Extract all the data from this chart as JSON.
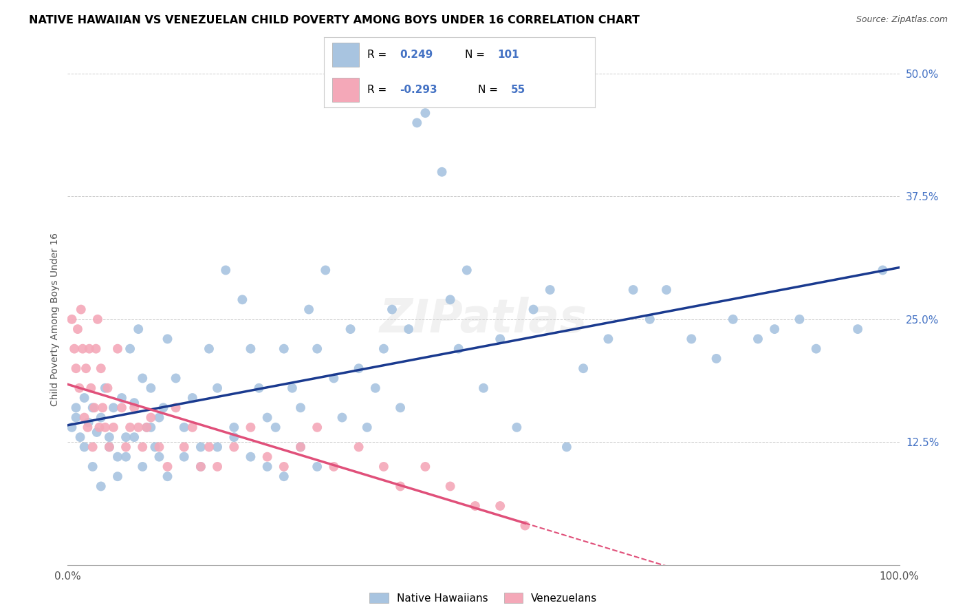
{
  "title": "NATIVE HAWAIIAN VS VENEZUELAN CHILD POVERTY AMONG BOYS UNDER 16 CORRELATION CHART",
  "source": "Source: ZipAtlas.com",
  "ylabel": "Child Poverty Among Boys Under 16",
  "r_hawaiian": 0.249,
  "n_hawaiian": 101,
  "r_venezuelan": -0.293,
  "n_venezuelan": 55,
  "hawaiian_color": "#a8c4e0",
  "venezuelan_color": "#f4a8b8",
  "hawaiian_line_color": "#1a3a8f",
  "venezuelan_line_color": "#e0507a",
  "watermark": "ZIPatlas",
  "legend_label_1": "Native Hawaiians",
  "legend_label_2": "Venezuelans",
  "hawaiian_x": [
    0.5,
    1.0,
    1.5,
    2.0,
    2.5,
    3.0,
    3.5,
    4.0,
    4.5,
    5.0,
    5.5,
    6.0,
    6.5,
    7.0,
    7.5,
    8.0,
    8.5,
    9.0,
    9.5,
    10.0,
    10.5,
    11.0,
    11.5,
    12.0,
    13.0,
    14.0,
    15.0,
    16.0,
    17.0,
    18.0,
    19.0,
    20.0,
    21.0,
    22.0,
    23.0,
    24.0,
    25.0,
    26.0,
    27.0,
    28.0,
    29.0,
    30.0,
    31.0,
    32.0,
    33.0,
    34.0,
    35.0,
    36.0,
    37.0,
    38.0,
    39.0,
    40.0,
    41.0,
    42.0,
    43.0,
    44.0,
    45.0,
    46.0,
    47.0,
    48.0,
    50.0,
    52.0,
    54.0,
    56.0,
    58.0,
    60.0,
    62.0,
    65.0,
    68.0,
    70.0,
    72.0,
    75.0,
    78.0,
    80.0,
    83.0,
    85.0,
    88.0,
    90.0,
    95.0,
    98.0,
    1.0,
    2.0,
    3.0,
    4.0,
    5.0,
    6.0,
    7.0,
    8.0,
    9.0,
    10.0,
    11.0,
    12.0,
    14.0,
    16.0,
    18.0,
    20.0,
    22.0,
    24.0,
    26.0,
    28.0,
    30.0
  ],
  "hawaiian_y": [
    14.0,
    16.0,
    13.0,
    17.0,
    14.5,
    16.0,
    13.5,
    15.0,
    18.0,
    13.0,
    16.0,
    11.0,
    17.0,
    13.0,
    22.0,
    16.5,
    24.0,
    19.0,
    14.0,
    18.0,
    12.0,
    15.0,
    16.0,
    23.0,
    19.0,
    14.0,
    17.0,
    12.0,
    22.0,
    18.0,
    30.0,
    14.0,
    27.0,
    22.0,
    18.0,
    15.0,
    14.0,
    22.0,
    18.0,
    16.0,
    26.0,
    22.0,
    30.0,
    19.0,
    15.0,
    24.0,
    20.0,
    14.0,
    18.0,
    22.0,
    26.0,
    16.0,
    24.0,
    45.0,
    46.0,
    47.0,
    40.0,
    27.0,
    22.0,
    30.0,
    18.0,
    23.0,
    14.0,
    26.0,
    28.0,
    12.0,
    20.0,
    23.0,
    28.0,
    25.0,
    28.0,
    23.0,
    21.0,
    25.0,
    23.0,
    24.0,
    25.0,
    22.0,
    24.0,
    30.0,
    15.0,
    12.0,
    10.0,
    8.0,
    12.0,
    9.0,
    11.0,
    13.0,
    10.0,
    14.0,
    11.0,
    9.0,
    11.0,
    10.0,
    12.0,
    13.0,
    11.0,
    10.0,
    9.0,
    12.0,
    10.0
  ],
  "venezuelan_x": [
    0.5,
    0.8,
    1.0,
    1.2,
    1.4,
    1.6,
    1.8,
    2.0,
    2.2,
    2.4,
    2.6,
    2.8,
    3.0,
    3.2,
    3.4,
    3.6,
    3.8,
    4.0,
    4.2,
    4.5,
    4.8,
    5.0,
    5.5,
    6.0,
    6.5,
    7.0,
    7.5,
    8.0,
    8.5,
    9.0,
    9.5,
    10.0,
    11.0,
    12.0,
    13.0,
    14.0,
    15.0,
    16.0,
    17.0,
    18.0,
    20.0,
    22.0,
    24.0,
    26.0,
    28.0,
    30.0,
    32.0,
    35.0,
    38.0,
    40.0,
    43.0,
    46.0,
    49.0,
    52.0,
    55.0
  ],
  "venezuelan_y": [
    25.0,
    22.0,
    20.0,
    24.0,
    18.0,
    26.0,
    22.0,
    15.0,
    20.0,
    14.0,
    22.0,
    18.0,
    12.0,
    16.0,
    22.0,
    25.0,
    14.0,
    20.0,
    16.0,
    14.0,
    18.0,
    12.0,
    14.0,
    22.0,
    16.0,
    12.0,
    14.0,
    16.0,
    14.0,
    12.0,
    14.0,
    15.0,
    12.0,
    10.0,
    16.0,
    12.0,
    14.0,
    10.0,
    12.0,
    10.0,
    12.0,
    14.0,
    11.0,
    10.0,
    12.0,
    14.0,
    10.0,
    12.0,
    10.0,
    8.0,
    10.0,
    8.0,
    6.0,
    6.0,
    4.0
  ]
}
